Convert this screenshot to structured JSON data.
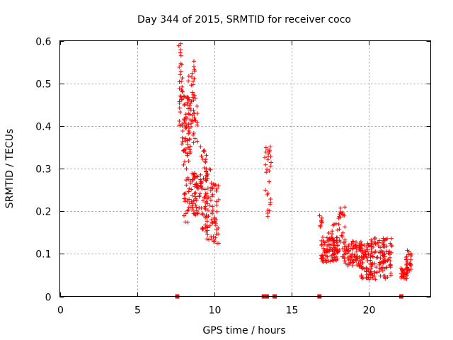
{
  "chart_data": {
    "type": "scatter",
    "title": "Day 344 of 2015, SRMTID for receiver coco",
    "xlabel": "GPS time / hours",
    "ylabel": "SRMTID / TECUs",
    "xlim": [
      0,
      24
    ],
    "ylim": [
      0,
      0.6
    ],
    "xticks": [
      "0",
      "5",
      "10",
      "15",
      "20"
    ],
    "yticks": [
      "0",
      "0.1",
      "0.2",
      "0.3",
      "0.4",
      "0.5",
      "0.6"
    ],
    "grid": true,
    "marker": "+",
    "color": "#ff0000",
    "series": [
      {
        "name": "SRMTID",
        "clusters": [
          {
            "t_start": 7.7,
            "t_end": 7.95,
            "v_low": 0.4,
            "v_high": 0.595,
            "n": 30
          },
          {
            "t_start": 7.9,
            "t_end": 8.45,
            "v_low": 0.33,
            "v_high": 0.47,
            "n": 60
          },
          {
            "t_start": 8.3,
            "t_end": 8.75,
            "v_low": 0.38,
            "v_high": 0.56,
            "n": 26
          },
          {
            "t_start": 8.6,
            "t_end": 8.9,
            "v_low": 0.36,
            "v_high": 0.48,
            "n": 18
          },
          {
            "t_start": 8.0,
            "t_end": 8.4,
            "v_low": 0.17,
            "v_high": 0.32,
            "n": 24
          },
          {
            "t_start": 8.3,
            "t_end": 8.8,
            "v_low": 0.19,
            "v_high": 0.3,
            "n": 28
          },
          {
            "t_start": 8.7,
            "t_end": 9.2,
            "v_low": 0.19,
            "v_high": 0.29,
            "n": 38
          },
          {
            "t_start": 9.1,
            "t_end": 9.5,
            "v_low": 0.15,
            "v_high": 0.36,
            "n": 36
          },
          {
            "t_start": 9.4,
            "t_end": 9.9,
            "v_low": 0.13,
            "v_high": 0.3,
            "n": 46
          },
          {
            "t_start": 9.8,
            "t_end": 10.3,
            "v_low": 0.12,
            "v_high": 0.27,
            "n": 34
          },
          {
            "t_start": 13.2,
            "t_end": 13.4,
            "v_low": 0.24,
            "v_high": 0.35,
            "n": 6
          },
          {
            "t_start": 13.4,
            "t_end": 13.7,
            "v_low": 0.18,
            "v_high": 0.36,
            "n": 22
          },
          {
            "t_start": 16.8,
            "t_end": 17.0,
            "v_low": 0.16,
            "v_high": 0.19,
            "n": 8
          },
          {
            "t_start": 16.9,
            "t_end": 18.0,
            "v_low": 0.08,
            "v_high": 0.14,
            "n": 90
          },
          {
            "t_start": 17.4,
            "t_end": 18.0,
            "v_low": 0.13,
            "v_high": 0.18,
            "n": 14
          },
          {
            "t_start": 18.0,
            "t_end": 18.5,
            "v_low": 0.09,
            "v_high": 0.21,
            "n": 30
          },
          {
            "t_start": 18.4,
            "t_end": 19.5,
            "v_low": 0.07,
            "v_high": 0.13,
            "n": 80
          },
          {
            "t_start": 19.5,
            "t_end": 20.2,
            "v_low": 0.04,
            "v_high": 0.13,
            "n": 60
          },
          {
            "t_start": 20.1,
            "t_end": 21.5,
            "v_low": 0.04,
            "v_high": 0.14,
            "n": 110
          },
          {
            "t_start": 22.0,
            "t_end": 22.5,
            "v_low": 0.04,
            "v_high": 0.07,
            "n": 28
          },
          {
            "t_start": 22.4,
            "t_end": 22.75,
            "v_low": 0.06,
            "v_high": 0.11,
            "n": 26
          }
        ],
        "zero_points": [
          7.6,
          13.2,
          13.4,
          13.9,
          16.8,
          22.1
        ]
      }
    ]
  }
}
